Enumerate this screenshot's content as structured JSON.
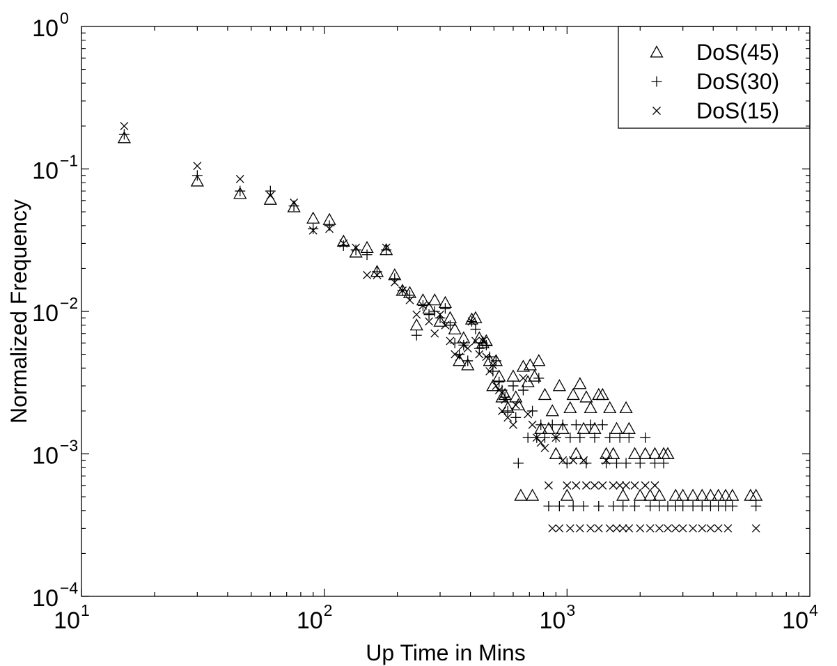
{
  "chart_data": {
    "type": "scatter",
    "title": "",
    "xlabel": "Up Time in Mins",
    "ylabel": "Normalized Frequency",
    "xscale": "log",
    "yscale": "log",
    "xlim": [
      10,
      10000
    ],
    "ylim": [
      0.0001,
      1
    ],
    "grid": false,
    "legend_position": "top-right",
    "x_ticks": [
      {
        "value": 10,
        "base": "10",
        "exp": "1"
      },
      {
        "value": 100,
        "base": "10",
        "exp": "2"
      },
      {
        "value": 1000,
        "base": "10",
        "exp": "3"
      },
      {
        "value": 10000,
        "base": "10",
        "exp": "4"
      }
    ],
    "y_ticks": [
      {
        "value": 1,
        "base": "10",
        "exp": "0"
      },
      {
        "value": 0.1,
        "base": "10",
        "exp": "−1"
      },
      {
        "value": 0.01,
        "base": "10",
        "exp": "−2"
      },
      {
        "value": 0.001,
        "base": "10",
        "exp": "−3"
      },
      {
        "value": 0.0001,
        "base": "10",
        "exp": "−4"
      }
    ],
    "series": [
      {
        "name": "DoS(45)",
        "marker": "triangle",
        "points": [
          [
            15,
            0.165
          ],
          [
            30,
            0.082
          ],
          [
            45,
            0.067
          ],
          [
            60,
            0.061
          ],
          [
            75,
            0.054
          ],
          [
            90,
            0.045
          ],
          [
            105,
            0.044
          ],
          [
            120,
            0.031
          ],
          [
            135,
            0.026
          ],
          [
            150,
            0.028
          ],
          [
            165,
            0.019
          ],
          [
            180,
            0.027
          ],
          [
            195,
            0.018
          ],
          [
            210,
            0.014
          ],
          [
            225,
            0.0135
          ],
          [
            240,
            0.008
          ],
          [
            255,
            0.012
          ],
          [
            270,
            0.0105
          ],
          [
            285,
            0.012
          ],
          [
            300,
            0.0085
          ],
          [
            315,
            0.0115
          ],
          [
            330,
            0.009
          ],
          [
            345,
            0.0075
          ],
          [
            360,
            0.0045
          ],
          [
            375,
            0.0065
          ],
          [
            390,
            0.0042
          ],
          [
            405,
            0.0088
          ],
          [
            420,
            0.009
          ],
          [
            435,
            0.0065
          ],
          [
            450,
            0.006
          ],
          [
            465,
            0.0062
          ],
          [
            480,
            0.0045
          ],
          [
            495,
            0.003
          ],
          [
            510,
            0.0045
          ],
          [
            525,
            0.0035
          ],
          [
            540,
            0.0025
          ],
          [
            555,
            0.0026
          ],
          [
            570,
            0.0021
          ],
          [
            600,
            0.0035
          ],
          [
            615,
            0.0025
          ],
          [
            630,
            0.0022
          ],
          [
            645,
            0.00051
          ],
          [
            660,
            0.0041
          ],
          [
            690,
            0.0032
          ],
          [
            705,
            0.0042
          ],
          [
            720,
            0.00051
          ],
          [
            735,
            0.0035
          ],
          [
            765,
            0.0045
          ],
          [
            780,
            0.0015
          ],
          [
            810,
            0.0026
          ],
          [
            840,
            0.0015
          ],
          [
            870,
            0.002
          ],
          [
            900,
            0.001
          ],
          [
            930,
            0.003
          ],
          [
            960,
            0.0015
          ],
          [
            1000,
            0.00051
          ],
          [
            1030,
            0.0021
          ],
          [
            1060,
            0.0026
          ],
          [
            1090,
            0.001
          ],
          [
            1130,
            0.0031
          ],
          [
            1170,
            0.0015
          ],
          [
            1200,
            0.0025
          ],
          [
            1250,
            0.0021
          ],
          [
            1300,
            0.0015
          ],
          [
            1350,
            0.0026
          ],
          [
            1400,
            0.0026
          ],
          [
            1450,
            0.001
          ],
          [
            1500,
            0.0021
          ],
          [
            1550,
            0.001
          ],
          [
            1600,
            0.0015
          ],
          [
            1700,
            0.00051
          ],
          [
            1750,
            0.0021
          ],
          [
            1800,
            0.0015
          ],
          [
            1900,
            0.001
          ],
          [
            2000,
            0.00051
          ],
          [
            2100,
            0.001
          ],
          [
            2200,
            0.00051
          ],
          [
            2300,
            0.001
          ],
          [
            2400,
            0.00051
          ],
          [
            2500,
            0.001
          ],
          [
            2600,
            0.001
          ],
          [
            2800,
            0.00051
          ],
          [
            3000,
            0.00051
          ],
          [
            3300,
            0.00051
          ],
          [
            3600,
            0.00051
          ],
          [
            3900,
            0.00051
          ],
          [
            4200,
            0.00051
          ],
          [
            4500,
            0.00051
          ],
          [
            4800,
            0.00051
          ],
          [
            5700,
            0.00051
          ],
          [
            6000,
            0.00051
          ]
        ]
      },
      {
        "name": "DoS(30)",
        "marker": "plus",
        "points": [
          [
            15,
            0.175
          ],
          [
            30,
            0.09
          ],
          [
            45,
            0.07
          ],
          [
            60,
            0.07
          ],
          [
            75,
            0.055
          ],
          [
            90,
            0.038
          ],
          [
            105,
            0.04
          ],
          [
            120,
            0.029
          ],
          [
            135,
            0.027
          ],
          [
            150,
            0.025
          ],
          [
            165,
            0.019
          ],
          [
            180,
            0.027
          ],
          [
            195,
            0.017
          ],
          [
            210,
            0.014
          ],
          [
            225,
            0.013
          ],
          [
            240,
            0.0068
          ],
          [
            255,
            0.011
          ],
          [
            270,
            0.0095
          ],
          [
            285,
            0.01
          ],
          [
            300,
            0.009
          ],
          [
            315,
            0.0105
          ],
          [
            330,
            0.008
          ],
          [
            345,
            0.006
          ],
          [
            360,
            0.005
          ],
          [
            375,
            0.0058
          ],
          [
            390,
            0.0045
          ],
          [
            405,
            0.0085
          ],
          [
            420,
            0.0075
          ],
          [
            435,
            0.0055
          ],
          [
            450,
            0.006
          ],
          [
            465,
            0.0058
          ],
          [
            480,
            0.0048
          ],
          [
            495,
            0.0038
          ],
          [
            510,
            0.0045
          ],
          [
            525,
            0.0032
          ],
          [
            540,
            0.0028
          ],
          [
            555,
            0.0025
          ],
          [
            570,
            0.002
          ],
          [
            600,
            0.003
          ],
          [
            615,
            0.0018
          ],
          [
            630,
            0.00086
          ],
          [
            660,
            0.0028
          ],
          [
            690,
            0.0013
          ],
          [
            720,
            0.002
          ],
          [
            750,
            0.0013
          ],
          [
            765,
            0.0034
          ],
          [
            780,
            0.0016
          ],
          [
            810,
            0.0013
          ],
          [
            840,
            0.00043
          ],
          [
            870,
            0.0016
          ],
          [
            900,
            0.0013
          ],
          [
            930,
            0.00043
          ],
          [
            960,
            0.0016
          ],
          [
            1000,
            0.00086
          ],
          [
            1030,
            0.0013
          ],
          [
            1060,
            0.00043
          ],
          [
            1090,
            0.0016
          ],
          [
            1130,
            0.0013
          ],
          [
            1170,
            0.00043
          ],
          [
            1200,
            0.00086
          ],
          [
            1250,
            0.0016
          ],
          [
            1300,
            0.0013
          ],
          [
            1350,
            0.00043
          ],
          [
            1400,
            0.0016
          ],
          [
            1450,
            0.00086
          ],
          [
            1500,
            0.0013
          ],
          [
            1550,
            0.00043
          ],
          [
            1600,
            0.00086
          ],
          [
            1650,
            0.0013
          ],
          [
            1700,
            0.00043
          ],
          [
            1750,
            0.00086
          ],
          [
            1800,
            0.0013
          ],
          [
            1900,
            0.00043
          ],
          [
            2000,
            0.00086
          ],
          [
            2100,
            0.0013
          ],
          [
            2200,
            0.00043
          ],
          [
            2300,
            0.00086
          ],
          [
            2400,
            0.00043
          ],
          [
            2500,
            0.00086
          ],
          [
            2600,
            0.00043
          ],
          [
            2800,
            0.00043
          ],
          [
            3000,
            0.00043
          ],
          [
            3300,
            0.00043
          ],
          [
            3600,
            0.00043
          ],
          [
            3900,
            0.00043
          ],
          [
            4200,
            0.00043
          ],
          [
            4500,
            0.00043
          ],
          [
            4800,
            0.00043
          ],
          [
            6000,
            0.00043
          ]
        ]
      },
      {
        "name": "DoS(15)",
        "marker": "x",
        "points": [
          [
            15,
            0.2
          ],
          [
            30,
            0.105
          ],
          [
            45,
            0.085
          ],
          [
            60,
            0.065
          ],
          [
            75,
            0.058
          ],
          [
            90,
            0.037
          ],
          [
            105,
            0.038
          ],
          [
            120,
            0.03
          ],
          [
            135,
            0.028
          ],
          [
            150,
            0.018
          ],
          [
            165,
            0.018
          ],
          [
            180,
            0.028
          ],
          [
            195,
            0.016
          ],
          [
            210,
            0.014
          ],
          [
            225,
            0.012
          ],
          [
            240,
            0.0095
          ],
          [
            255,
            0.011
          ],
          [
            270,
            0.0085
          ],
          [
            285,
            0.007
          ],
          [
            300,
            0.0095
          ],
          [
            315,
            0.008
          ],
          [
            330,
            0.0062
          ],
          [
            345,
            0.005
          ],
          [
            360,
            0.0048
          ],
          [
            375,
            0.0058
          ],
          [
            390,
            0.0055
          ],
          [
            405,
            0.0085
          ],
          [
            420,
            0.0062
          ],
          [
            435,
            0.005
          ],
          [
            450,
            0.0062
          ],
          [
            465,
            0.0048
          ],
          [
            480,
            0.0038
          ],
          [
            495,
            0.0042
          ],
          [
            510,
            0.003
          ],
          [
            525,
            0.0028
          ],
          [
            540,
            0.002
          ],
          [
            555,
            0.0024
          ],
          [
            570,
            0.0018
          ],
          [
            600,
            0.0016
          ],
          [
            615,
            0.0022
          ],
          [
            660,
            0.0034
          ],
          [
            690,
            0.0019
          ],
          [
            720,
            0.0016
          ],
          [
            750,
            0.0013
          ],
          [
            780,
            0.0012
          ],
          [
            810,
            0.0011
          ],
          [
            840,
            0.0006
          ],
          [
            870,
            0.0003
          ],
          [
            900,
            0.0013
          ],
          [
            930,
            0.0003
          ],
          [
            960,
            0.0009
          ],
          [
            1000,
            0.0006
          ],
          [
            1030,
            0.0003
          ],
          [
            1060,
            0.0009
          ],
          [
            1090,
            0.0006
          ],
          [
            1130,
            0.0003
          ],
          [
            1170,
            0.0009
          ],
          [
            1200,
            0.0006
          ],
          [
            1250,
            0.0003
          ],
          [
            1300,
            0.0006
          ],
          [
            1350,
            0.0003
          ],
          [
            1400,
            0.0006
          ],
          [
            1450,
            0.0009
          ],
          [
            1500,
            0.0003
          ],
          [
            1550,
            0.0006
          ],
          [
            1600,
            0.0003
          ],
          [
            1650,
            0.0006
          ],
          [
            1700,
            0.0003
          ],
          [
            1750,
            0.0006
          ],
          [
            1800,
            0.0003
          ],
          [
            1900,
            0.0006
          ],
          [
            2000,
            0.0003
          ],
          [
            2100,
            0.0006
          ],
          [
            2200,
            0.0003
          ],
          [
            2300,
            0.0006
          ],
          [
            2400,
            0.0003
          ],
          [
            2600,
            0.0003
          ],
          [
            2800,
            0.0003
          ],
          [
            3000,
            0.0003
          ],
          [
            3300,
            0.0003
          ],
          [
            3600,
            0.0003
          ],
          [
            3900,
            0.0003
          ],
          [
            4200,
            0.0003
          ],
          [
            4600,
            0.0003
          ],
          [
            6000,
            0.0003
          ]
        ]
      }
    ]
  }
}
